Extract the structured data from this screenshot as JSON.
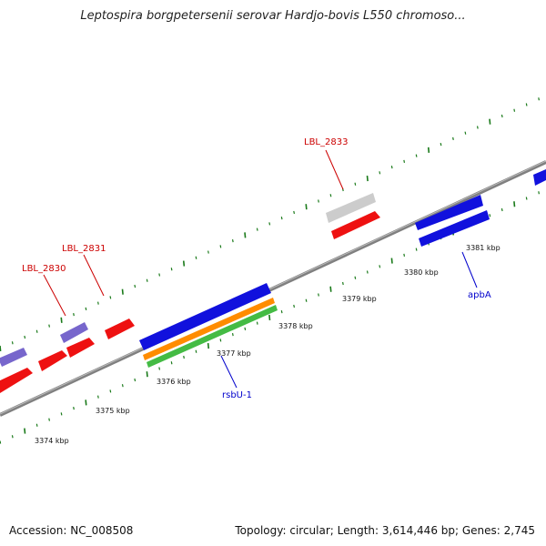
{
  "title": "Leptospira borgpetersenii serovar Hardjo-bovis L550 chromoso...",
  "footer": {
    "accession": "Accession: NC_008508",
    "stats": "Topology: circular; Length: 3,614,446 bp; Genes: 2,745"
  },
  "colors": {
    "backbone": "#808080",
    "tick": "#1a7a1a",
    "red_gene": "#ee1111",
    "blue_gene": "#1111dd",
    "purple_gene": "#7766cc",
    "gray_gene": "#cccccc",
    "orange_gene": "#ff8c00",
    "green_gene": "#44bb44",
    "label_red": "#cc0000",
    "label_blue": "#0000cc"
  },
  "scale": {
    "unit": "kbp",
    "ticks": [
      "3374 kbp",
      "3375 kbp",
      "3376 kbp",
      "3377 kbp",
      "3378 kbp",
      "3379 kbp",
      "3380 kbp",
      "3381 kbp"
    ]
  },
  "gene_labels": [
    {
      "name": "LBL_2830",
      "color": "red"
    },
    {
      "name": "LBL_2831",
      "color": "red"
    },
    {
      "name": "LBL_2833",
      "color": "red"
    },
    {
      "name": "rsbU-1",
      "color": "blue"
    },
    {
      "name": "apbA",
      "color": "blue"
    }
  ]
}
